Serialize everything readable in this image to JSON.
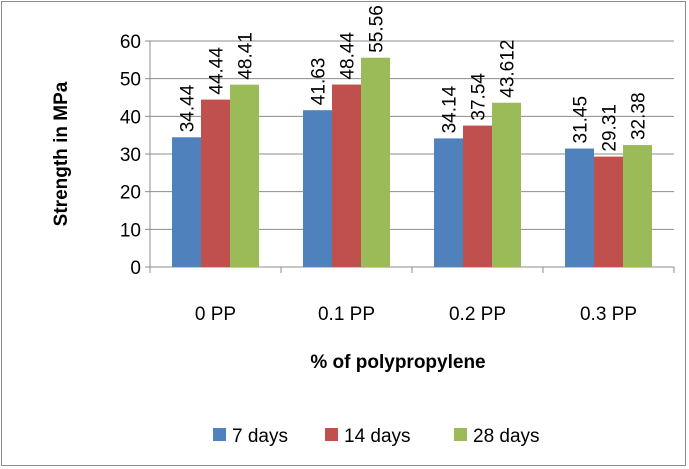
{
  "chart_data": {
    "type": "bar",
    "title": "",
    "xlabel": "% of polypropylene",
    "ylabel": "Strength in MPa",
    "categories": [
      "0 PP",
      "0.1 PP",
      "0.2 PP",
      "0.3 PP"
    ],
    "series": [
      {
        "name": "7 days",
        "values": [
          34.44,
          41.63,
          34.14,
          31.45
        ],
        "labels": [
          "34.44",
          "41.63",
          "34.14",
          "31.45"
        ],
        "color": "#4f81bd"
      },
      {
        "name": "14 days",
        "values": [
          44.44,
          48.44,
          37.54,
          29.31
        ],
        "labels": [
          "44.44",
          "48.44",
          "37.54",
          "29.31"
        ],
        "color": "#c0504d"
      },
      {
        "name": "28 days",
        "values": [
          48.41,
          55.56,
          43.612,
          32.38
        ],
        "labels": [
          "48.41",
          "55.56",
          "43.612",
          "32.38"
        ],
        "color": "#9bbb59"
      }
    ],
    "ylim": [
      0,
      60
    ],
    "yticks": [
      0,
      10,
      20,
      30,
      40,
      50,
      60
    ],
    "ytick_labels": [
      "0",
      "10",
      "20",
      "30",
      "40",
      "50",
      "60"
    ],
    "grid": true,
    "legend_position": "bottom"
  }
}
